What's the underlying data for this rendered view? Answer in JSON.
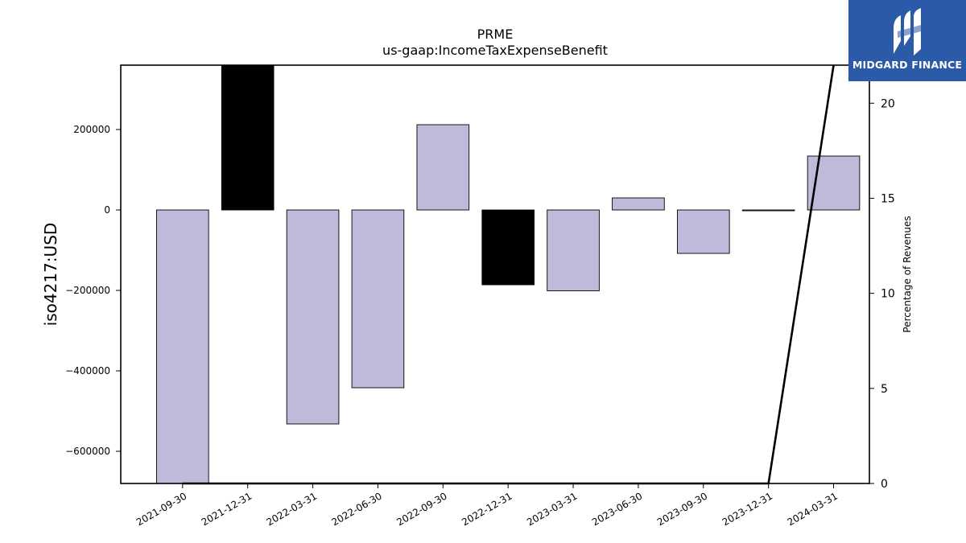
{
  "chart_data": {
    "type": "bar",
    "title": "PRME",
    "subtitle": "us-gaap:IncomeTaxExpenseBenefit",
    "ylabel": "iso4217:USD",
    "y2label": "Percentage of Revenues",
    "categories": [
      "2021-09-30",
      "2021-12-31",
      "2022-03-31",
      "2022-06-30",
      "2022-09-30",
      "2022-12-31",
      "2023-03-31",
      "2023-06-30",
      "2023-09-30",
      "2023-12-31",
      "2024-03-31"
    ],
    "values": [
      -680000,
      360000,
      -532000,
      -442000,
      212000,
      -186000,
      -201000,
      30000,
      -108000,
      0,
      134000
    ],
    "highlight": [
      false,
      true,
      false,
      false,
      false,
      true,
      false,
      false,
      false,
      false,
      false
    ],
    "ylim": [
      -680000,
      360000
    ],
    "yticks": [
      -600000,
      -400000,
      -200000,
      0,
      200000
    ],
    "ytick_labels": [
      "−600000",
      "−400000",
      "−200000",
      "0",
      "200000"
    ],
    "y2lim": [
      0,
      22
    ],
    "y2ticks": [
      0,
      5,
      10,
      15,
      20
    ],
    "line": {
      "name": "Percentage of Revenues",
      "x": [
        "2021-09-30",
        "2021-12-31",
        "2022-03-31",
        "2022-06-30",
        "2022-09-30",
        "2022-12-31",
        "2023-03-31",
        "2023-06-30",
        "2023-09-30",
        "2023-12-31",
        "2024-03-31"
      ],
      "y": [
        0,
        0,
        0,
        0,
        0,
        0,
        0,
        0,
        0,
        0,
        22
      ]
    },
    "colors": {
      "bar": "#bebbda",
      "highlight": "#000000",
      "line": "#000000"
    },
    "grid": false
  },
  "logo": {
    "text": "MIDGARD FINANCE",
    "icon": "midgard-logo-icon"
  }
}
